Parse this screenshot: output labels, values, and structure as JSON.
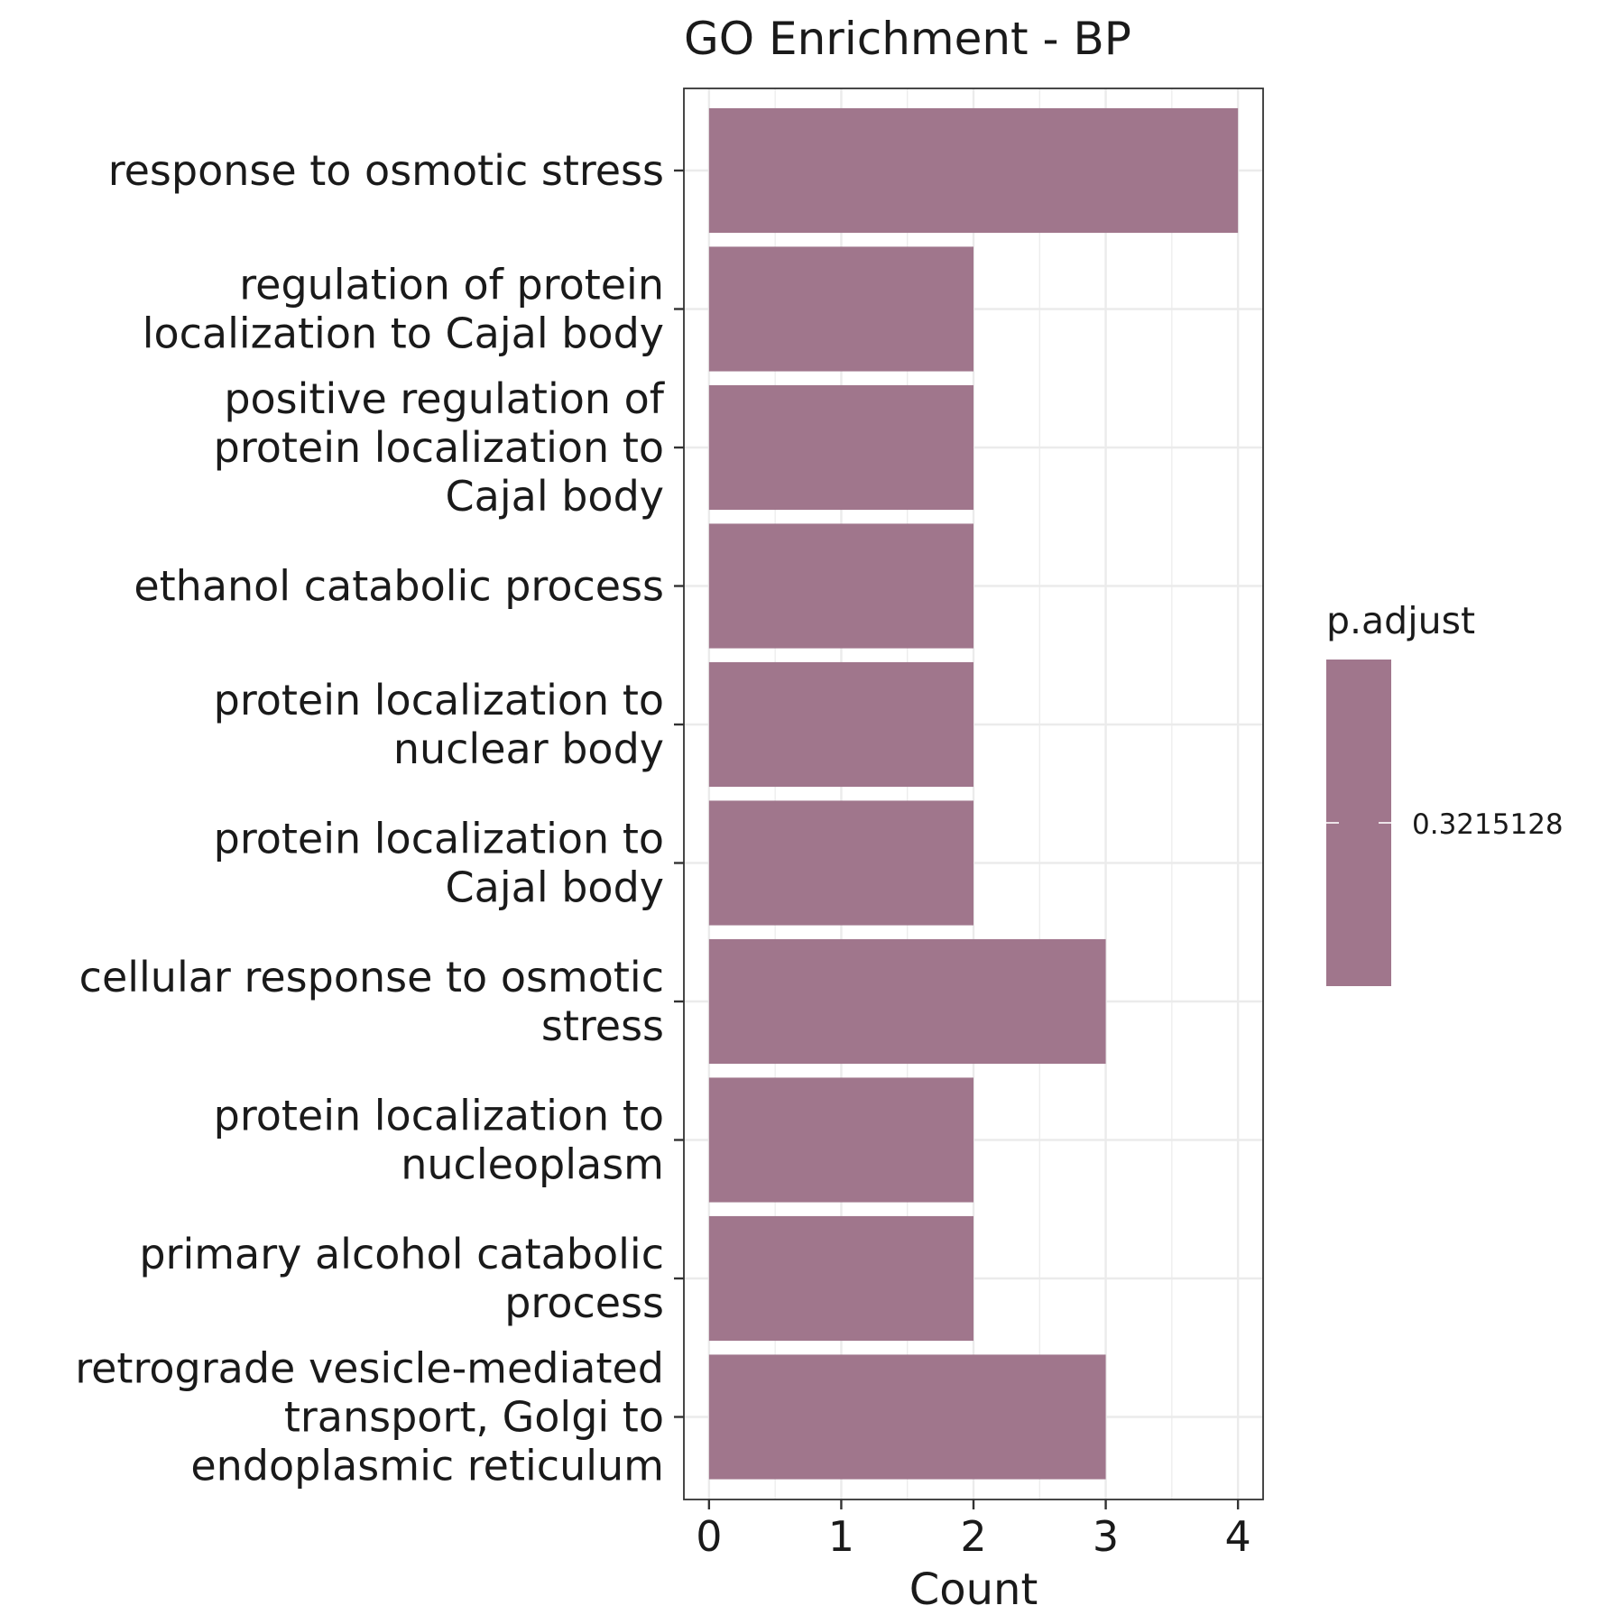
{
  "chart_data": {
    "type": "bar",
    "orientation": "horizontal",
    "title": "GO Enrichment - BP",
    "xlabel": "Count",
    "ylabel": "",
    "xlim": [
      -0.19,
      4.19
    ],
    "xticks": [
      0,
      1,
      2,
      3,
      4
    ],
    "grid": true,
    "bar_color": "#a0768c",
    "categories": [
      {
        "lines": [
          "response to osmotic stress"
        ],
        "value": 4
      },
      {
        "lines": [
          "regulation of protein",
          "localization to Cajal body"
        ],
        "value": 2
      },
      {
        "lines": [
          "positive regulation of",
          "protein localization to",
          "Cajal body"
        ],
        "value": 2
      },
      {
        "lines": [
          "ethanol catabolic process"
        ],
        "value": 2
      },
      {
        "lines": [
          "protein localization to",
          "nuclear body"
        ],
        "value": 2
      },
      {
        "lines": [
          "protein localization to",
          "Cajal body"
        ],
        "value": 2
      },
      {
        "lines": [
          "cellular response to osmotic",
          "stress"
        ],
        "value": 3
      },
      {
        "lines": [
          "protein localization to",
          "nucleoplasm"
        ],
        "value": 2
      },
      {
        "lines": [
          "primary alcohol catabolic",
          "process"
        ],
        "value": 2
      },
      {
        "lines": [
          "retrograde vesicle-mediated",
          "transport, Golgi to",
          "endoplasmic reticulum"
        ],
        "value": 3
      }
    ],
    "legend": {
      "title": "p.adjust",
      "placement": "right",
      "tick_labels": [
        "0.3215128"
      ],
      "color": "#a0768c"
    }
  }
}
